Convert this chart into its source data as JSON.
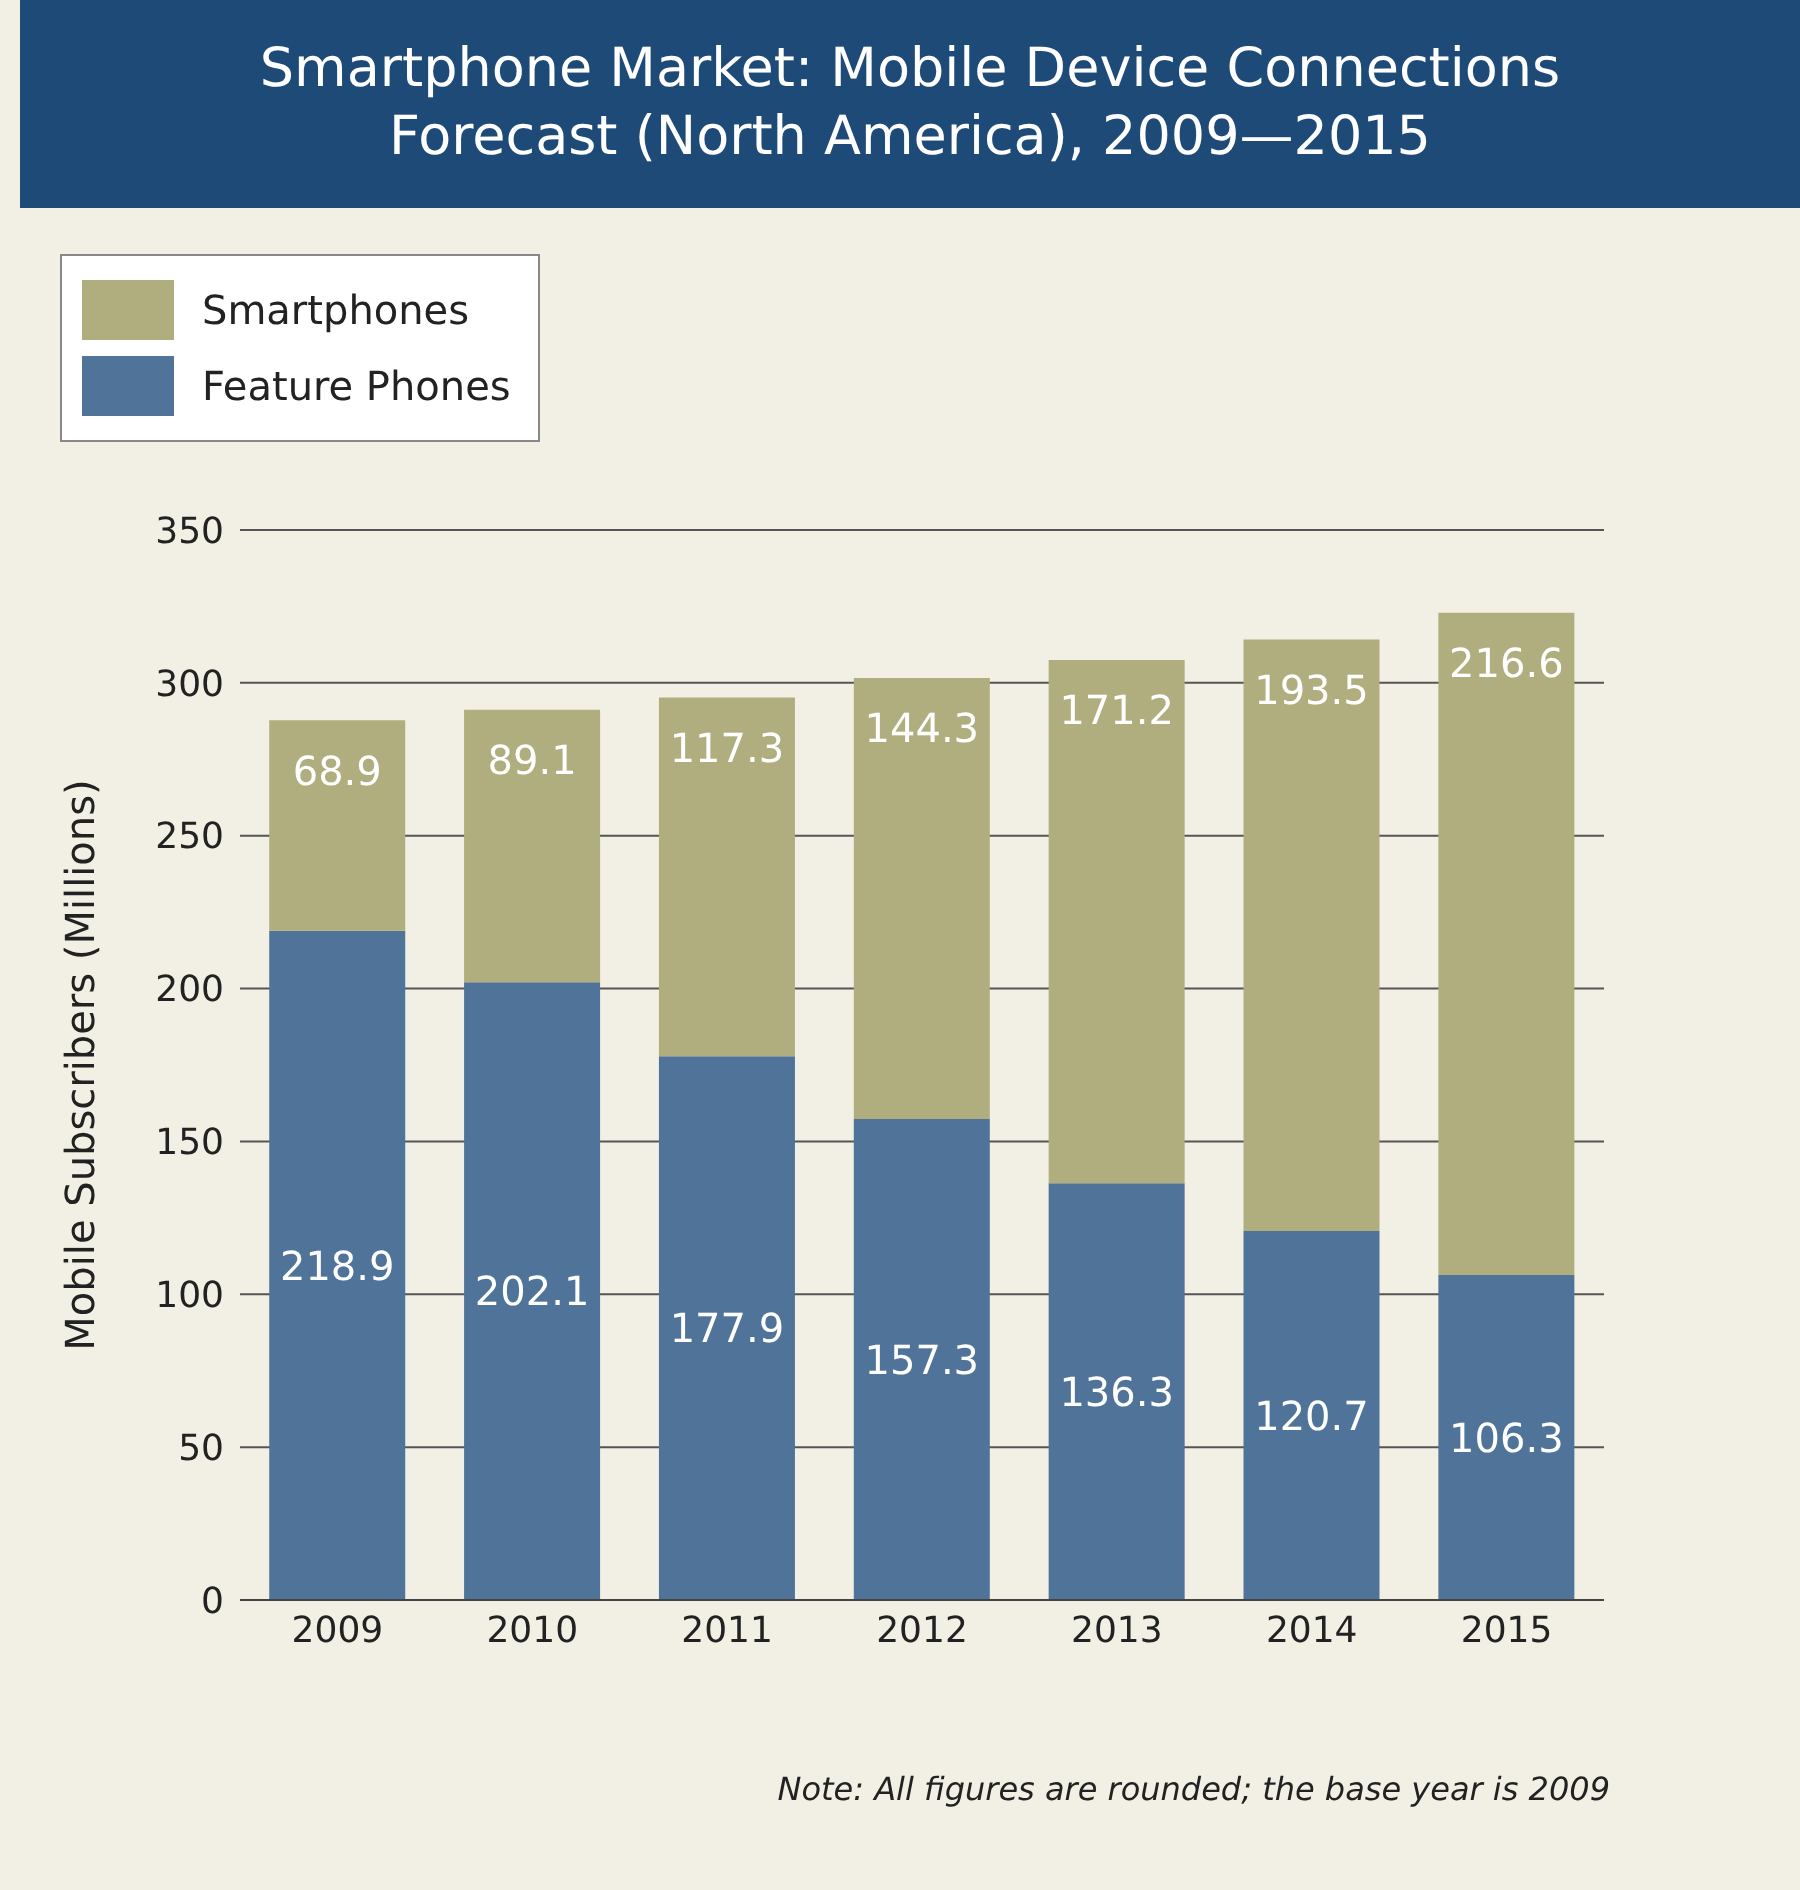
{
  "chart_data": {
    "type": "bar",
    "title": "Smartphone Market: Mobile Device Connections Forecast (North America), 2009—2015",
    "ylabel": "Mobile Subscribers (Millions)",
    "categories": [
      "2009",
      "2010",
      "2011",
      "2012",
      "2013",
      "2014",
      "2015"
    ],
    "stacked": true,
    "series": [
      {
        "name": "Feature Phones",
        "color": "#4f7399",
        "values": [
          218.9,
          202.1,
          177.9,
          157.3,
          136.3,
          120.7,
          106.3
        ]
      },
      {
        "name": "Smartphones",
        "color": "#b0ae7e",
        "values": [
          68.9,
          89.1,
          117.3,
          144.3,
          171.2,
          193.5,
          216.6
        ]
      }
    ],
    "ylim": [
      0,
      350
    ],
    "yticks": [
      0,
      50,
      100,
      150,
      200,
      250,
      300,
      350
    ],
    "grid": "y",
    "legend": "top left",
    "data_labels": true,
    "annotations": [
      "Note: All figures are rounded; the base year is 2009"
    ]
  }
}
